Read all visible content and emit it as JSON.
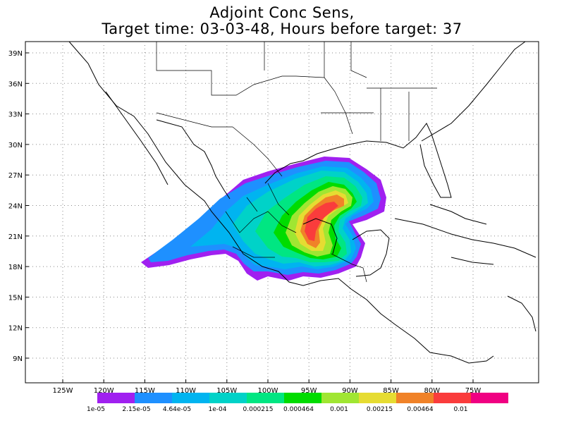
{
  "title_line1": "Adjoint Conc Sens,",
  "title_line2": "Target time: 03-03-48, Hours before target: 37",
  "lat_labels": [
    "39N",
    "36N",
    "33N",
    "30N",
    "27N",
    "24N",
    "21N",
    "18N",
    "15N",
    "12N",
    "9N"
  ],
  "lon_labels": [
    "125W",
    "120W",
    "115W",
    "110W",
    "105W",
    "100W",
    "95W",
    "90W",
    "85W",
    "80W",
    "75W"
  ],
  "colorbar": {
    "colors": [
      "#a020f0",
      "#1e90ff",
      "#00b4f0",
      "#00d2c8",
      "#00e682",
      "#00dc00",
      "#a0e632",
      "#e6dc32",
      "#f08228",
      "#fa3c3c",
      "#f00082"
    ],
    "labels": [
      "1e-05",
      "2.15e-05",
      "4.64e-05",
      "1e-04",
      "0.000215",
      "0.000464",
      "0.001",
      "0.00215",
      "0.00464",
      "0.01"
    ]
  }
}
